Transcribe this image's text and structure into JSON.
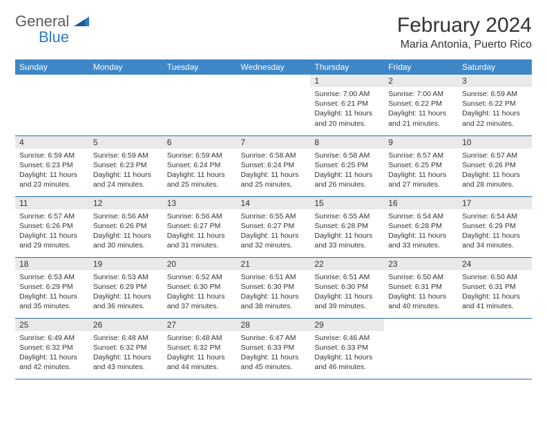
{
  "logo": {
    "word1": "General",
    "word2": "Blue"
  },
  "title": "February 2024",
  "location": "Maria Antonia, Puerto Rico",
  "colors": {
    "header_bg": "#3d87c7",
    "header_text": "#ffffff",
    "daynum_bg": "#e9e9e9",
    "row_border": "#2b6aa3",
    "logo_gray": "#5a5a5a",
    "logo_blue": "#2b7bbf",
    "body_text": "#333333"
  },
  "weekdays": [
    "Sunday",
    "Monday",
    "Tuesday",
    "Wednesday",
    "Thursday",
    "Friday",
    "Saturday"
  ],
  "weeks": [
    [
      null,
      null,
      null,
      null,
      {
        "n": "1",
        "sr": "Sunrise: 7:00 AM",
        "ss": "Sunset: 6:21 PM",
        "d1": "Daylight: 11 hours",
        "d2": "and 20 minutes."
      },
      {
        "n": "2",
        "sr": "Sunrise: 7:00 AM",
        "ss": "Sunset: 6:22 PM",
        "d1": "Daylight: 11 hours",
        "d2": "and 21 minutes."
      },
      {
        "n": "3",
        "sr": "Sunrise: 6:59 AM",
        "ss": "Sunset: 6:22 PM",
        "d1": "Daylight: 11 hours",
        "d2": "and 22 minutes."
      }
    ],
    [
      {
        "n": "4",
        "sr": "Sunrise: 6:59 AM",
        "ss": "Sunset: 6:23 PM",
        "d1": "Daylight: 11 hours",
        "d2": "and 23 minutes."
      },
      {
        "n": "5",
        "sr": "Sunrise: 6:59 AM",
        "ss": "Sunset: 6:23 PM",
        "d1": "Daylight: 11 hours",
        "d2": "and 24 minutes."
      },
      {
        "n": "6",
        "sr": "Sunrise: 6:59 AM",
        "ss": "Sunset: 6:24 PM",
        "d1": "Daylight: 11 hours",
        "d2": "and 25 minutes."
      },
      {
        "n": "7",
        "sr": "Sunrise: 6:58 AM",
        "ss": "Sunset: 6:24 PM",
        "d1": "Daylight: 11 hours",
        "d2": "and 25 minutes."
      },
      {
        "n": "8",
        "sr": "Sunrise: 6:58 AM",
        "ss": "Sunset: 6:25 PM",
        "d1": "Daylight: 11 hours",
        "d2": "and 26 minutes."
      },
      {
        "n": "9",
        "sr": "Sunrise: 6:57 AM",
        "ss": "Sunset: 6:25 PM",
        "d1": "Daylight: 11 hours",
        "d2": "and 27 minutes."
      },
      {
        "n": "10",
        "sr": "Sunrise: 6:57 AM",
        "ss": "Sunset: 6:26 PM",
        "d1": "Daylight: 11 hours",
        "d2": "and 28 minutes."
      }
    ],
    [
      {
        "n": "11",
        "sr": "Sunrise: 6:57 AM",
        "ss": "Sunset: 6:26 PM",
        "d1": "Daylight: 11 hours",
        "d2": "and 29 minutes."
      },
      {
        "n": "12",
        "sr": "Sunrise: 6:56 AM",
        "ss": "Sunset: 6:26 PM",
        "d1": "Daylight: 11 hours",
        "d2": "and 30 minutes."
      },
      {
        "n": "13",
        "sr": "Sunrise: 6:56 AM",
        "ss": "Sunset: 6:27 PM",
        "d1": "Daylight: 11 hours",
        "d2": "and 31 minutes."
      },
      {
        "n": "14",
        "sr": "Sunrise: 6:55 AM",
        "ss": "Sunset: 6:27 PM",
        "d1": "Daylight: 11 hours",
        "d2": "and 32 minutes."
      },
      {
        "n": "15",
        "sr": "Sunrise: 6:55 AM",
        "ss": "Sunset: 6:28 PM",
        "d1": "Daylight: 11 hours",
        "d2": "and 33 minutes."
      },
      {
        "n": "16",
        "sr": "Sunrise: 6:54 AM",
        "ss": "Sunset: 6:28 PM",
        "d1": "Daylight: 11 hours",
        "d2": "and 33 minutes."
      },
      {
        "n": "17",
        "sr": "Sunrise: 6:54 AM",
        "ss": "Sunset: 6:29 PM",
        "d1": "Daylight: 11 hours",
        "d2": "and 34 minutes."
      }
    ],
    [
      {
        "n": "18",
        "sr": "Sunrise: 6:53 AM",
        "ss": "Sunset: 6:29 PM",
        "d1": "Daylight: 11 hours",
        "d2": "and 35 minutes."
      },
      {
        "n": "19",
        "sr": "Sunrise: 6:53 AM",
        "ss": "Sunset: 6:29 PM",
        "d1": "Daylight: 11 hours",
        "d2": "and 36 minutes."
      },
      {
        "n": "20",
        "sr": "Sunrise: 6:52 AM",
        "ss": "Sunset: 6:30 PM",
        "d1": "Daylight: 11 hours",
        "d2": "and 37 minutes."
      },
      {
        "n": "21",
        "sr": "Sunrise: 6:51 AM",
        "ss": "Sunset: 6:30 PM",
        "d1": "Daylight: 11 hours",
        "d2": "and 38 minutes."
      },
      {
        "n": "22",
        "sr": "Sunrise: 6:51 AM",
        "ss": "Sunset: 6:30 PM",
        "d1": "Daylight: 11 hours",
        "d2": "and 39 minutes."
      },
      {
        "n": "23",
        "sr": "Sunrise: 6:50 AM",
        "ss": "Sunset: 6:31 PM",
        "d1": "Daylight: 11 hours",
        "d2": "and 40 minutes."
      },
      {
        "n": "24",
        "sr": "Sunrise: 6:50 AM",
        "ss": "Sunset: 6:31 PM",
        "d1": "Daylight: 11 hours",
        "d2": "and 41 minutes."
      }
    ],
    [
      {
        "n": "25",
        "sr": "Sunrise: 6:49 AM",
        "ss": "Sunset: 6:32 PM",
        "d1": "Daylight: 11 hours",
        "d2": "and 42 minutes."
      },
      {
        "n": "26",
        "sr": "Sunrise: 6:48 AM",
        "ss": "Sunset: 6:32 PM",
        "d1": "Daylight: 11 hours",
        "d2": "and 43 minutes."
      },
      {
        "n": "27",
        "sr": "Sunrise: 6:48 AM",
        "ss": "Sunset: 6:32 PM",
        "d1": "Daylight: 11 hours",
        "d2": "and 44 minutes."
      },
      {
        "n": "28",
        "sr": "Sunrise: 6:47 AM",
        "ss": "Sunset: 6:33 PM",
        "d1": "Daylight: 11 hours",
        "d2": "and 45 minutes."
      },
      {
        "n": "29",
        "sr": "Sunrise: 6:46 AM",
        "ss": "Sunset: 6:33 PM",
        "d1": "Daylight: 11 hours",
        "d2": "and 46 minutes."
      },
      null,
      null
    ]
  ]
}
